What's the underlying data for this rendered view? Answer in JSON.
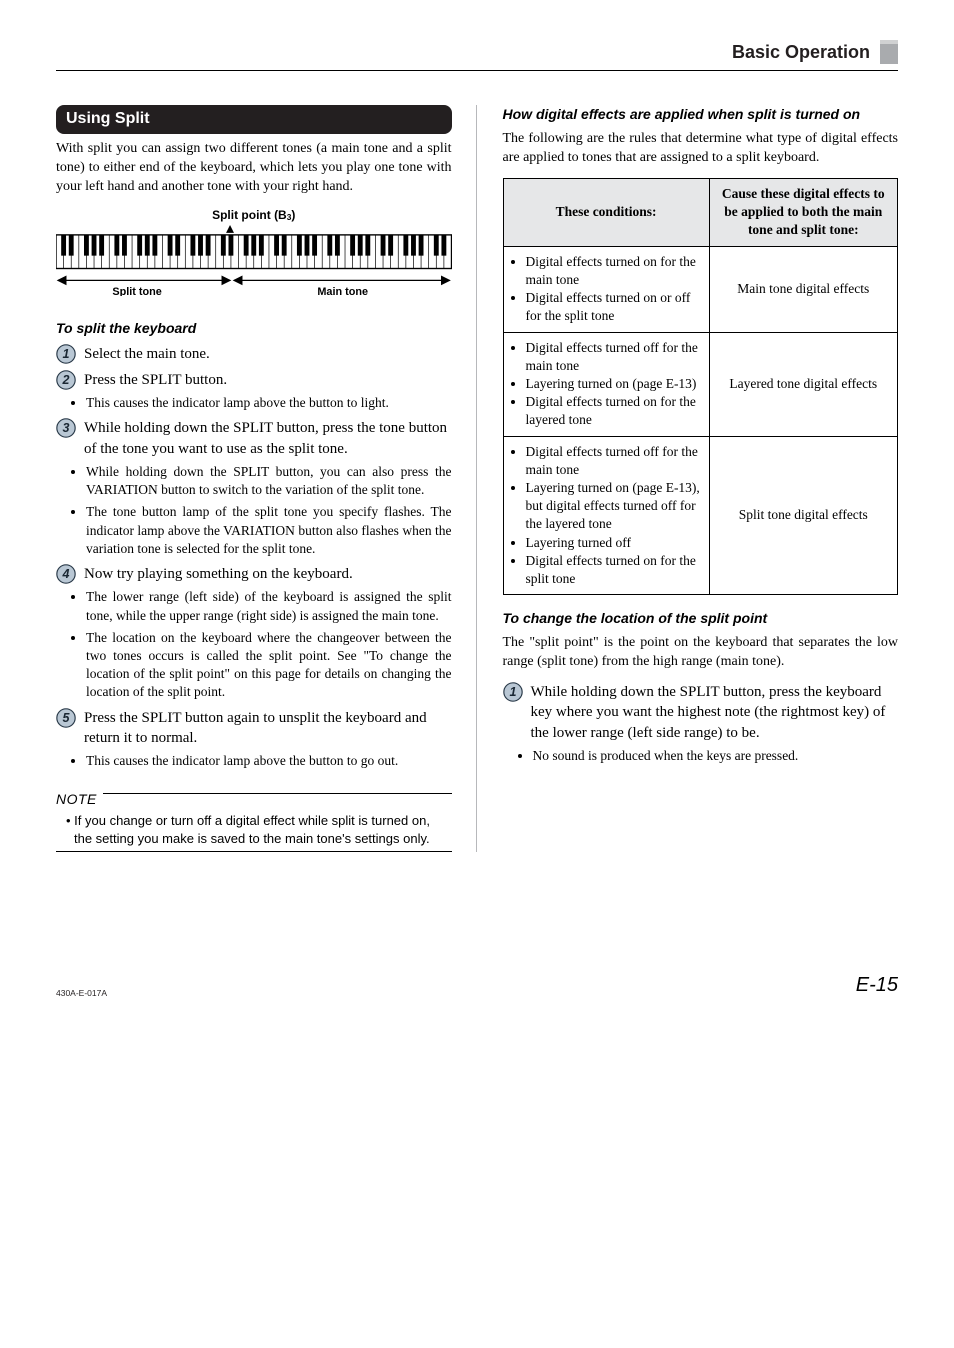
{
  "header": {
    "section": "Basic Operation"
  },
  "section_bar": "Using Split",
  "intro": "With split you can assign two different tones (a main tone and a split tone) to either end of the keyboard, which lets you play one tone with your left hand and another tone with your right hand.",
  "diagram": {
    "split_point_label": "Split point (B3)",
    "split_tone_label": "Split tone",
    "main_tone_label": "Main tone"
  },
  "subhead1": "To split the keyboard",
  "steps_left": [
    {
      "n": 1,
      "text": "Select the main tone.",
      "bullets": []
    },
    {
      "n": 2,
      "text": "Press the SPLIT button.",
      "bullets": [
        "This causes the indicator lamp above the button to light."
      ]
    },
    {
      "n": 3,
      "text": "While holding down the SPLIT button, press the tone button of the tone you want to use as the split tone.",
      "bullets": [
        "While holding down the SPLIT button, you can also press the VARIATION button to switch to the variation of the split tone.",
        "The tone button lamp of the split tone you specify flashes. The indicator lamp above the VARIATION button also flashes when the variation tone is selected for the split tone."
      ]
    },
    {
      "n": 4,
      "text": "Now try playing something on the keyboard.",
      "bullets": [
        "The lower range (left side) of the keyboard is assigned the split tone, while the upper range (right side) is assigned the main tone.",
        "The location on the keyboard where the changeover between the two tones occurs is called the split point. See \"To change the location of the split point\" on this page for details on changing the location of the split point."
      ]
    },
    {
      "n": 5,
      "text": "Press the SPLIT button again to unsplit the keyboard and return it to normal.",
      "bullets": [
        "This causes the indicator lamp above the button to go out."
      ]
    }
  ],
  "note": {
    "label": "NOTE",
    "body": "• If you change or turn off a digital effect while split is turned on, the setting you make is saved to the main tone's settings only."
  },
  "right": {
    "subhead_effects": "How digital effects are applied when split is turned on",
    "effects_intro": "The following are the rules that determine what type of digital effects are applied to tones that are assigned to a split keyboard.",
    "table": {
      "head_left": "These conditions:",
      "head_right": "Cause these digital effects to be applied to both the main tone and split tone:",
      "rows": [
        {
          "cond": [
            "Digital effects turned on for the main tone",
            "Digital effects turned on or off for the split tone"
          ],
          "result": "Main tone digital effects"
        },
        {
          "cond": [
            "Digital effects turned off for the main tone",
            "Layering turned on (page E-13)",
            "Digital effects turned on for the layered tone"
          ],
          "result": "Layered tone digital effects"
        },
        {
          "cond": [
            "Digital effects turned off for the main tone",
            "Layering turned on (page E-13), but digital effects turned off for the layered tone",
            "Layering turned off",
            "Digital effects turned on for the split tone"
          ],
          "result": "Split tone digital effects"
        }
      ]
    },
    "subhead_change": "To change the location of the split point",
    "change_intro": "The \"split point\" is the point on the keyboard that separates the low range (split tone) from the high range (main tone).",
    "steps_right": [
      {
        "n": 1,
        "text": "While holding down the SPLIT button, press the keyboard key where you want the highest note (the rightmost key) of the lower range (left side range) to be.",
        "bullets": [
          "No sound is produced when the keys are pressed."
        ]
      }
    ]
  },
  "footer": {
    "left": "430A-E-017A",
    "right": "E-15"
  },
  "colors": {
    "swatch_main": "#a9abae",
    "swatch_top": "#d0d1d2",
    "step_fill": "#b9c7d4",
    "step_stroke": "#2a3a49",
    "table_head_bg": "#e6e7e8"
  }
}
